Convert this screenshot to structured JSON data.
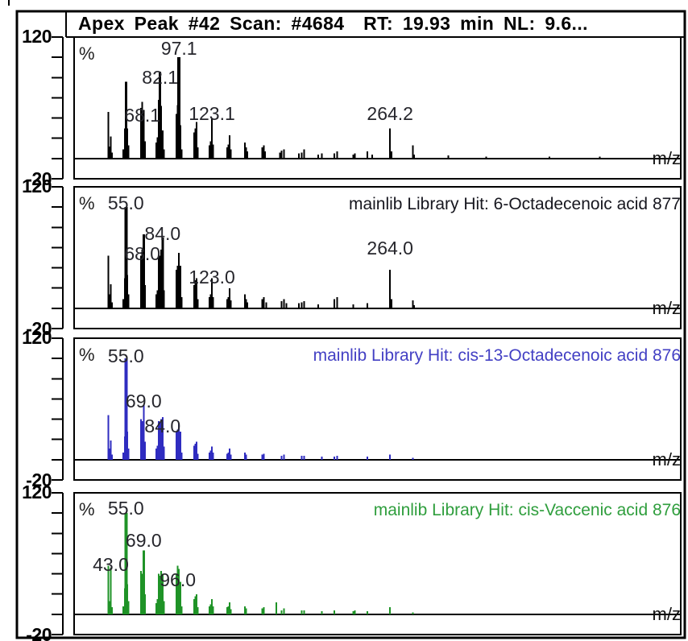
{
  "figure": {
    "description": "Mass spectral library comparison: apex scan spectrum vs three mainlib library hits",
    "axis": {
      "y_top": "120",
      "y_bottom": "-20",
      "ylabel": "%",
      "xlabel": "m/z"
    }
  },
  "palette": {
    "background": "#ffffff",
    "frame": "#000000",
    "peak_label_color": "#26262c"
  },
  "chart_data": [
    {
      "type": "bar",
      "title": "Apex Peak #42 Scan: #4684  RT: 19.93 min NL: 9.6...",
      "title_bold": true,
      "title_align": "left",
      "title_color": "#000000",
      "series_color": "#000000",
      "xlabel": "m/z",
      "ylabel": "%",
      "ylim": [
        -20,
        120
      ],
      "xlim": [
        14,
        494
      ],
      "labeled_peaks": [
        {
          "text": "68.1",
          "mz": 68,
          "dy": 29
        },
        {
          "text": "82.1",
          "mz": 82,
          "dy": 20
        },
        {
          "text": "97.1",
          "mz": 97,
          "dy": 2
        },
        {
          "text": "123.1",
          "mz": 123,
          "dy": 7
        },
        {
          "text": "264.2",
          "mz": 264,
          "dy": -5
        }
      ],
      "peaks": [
        [
          41,
          46
        ],
        [
          42,
          12
        ],
        [
          43,
          22
        ],
        [
          44,
          6
        ],
        [
          53,
          9
        ],
        [
          54,
          30
        ],
        [
          55,
          76
        ],
        [
          56,
          30
        ],
        [
          57,
          13
        ],
        [
          67,
          50
        ],
        [
          68,
          56
        ],
        [
          69,
          48
        ],
        [
          70,
          17
        ],
        [
          79,
          16
        ],
        [
          80,
          21
        ],
        [
          81,
          58
        ],
        [
          82,
          86
        ],
        [
          83,
          52
        ],
        [
          84,
          28
        ],
        [
          85,
          9
        ],
        [
          95,
          44
        ],
        [
          96,
          53
        ],
        [
          97,
          100
        ],
        [
          98,
          33
        ],
        [
          99,
          9
        ],
        [
          109,
          26
        ],
        [
          110,
          30
        ],
        [
          111,
          36
        ],
        [
          112,
          11
        ],
        [
          121,
          13
        ],
        [
          122,
          17
        ],
        [
          123,
          40
        ],
        [
          124,
          14
        ],
        [
          135,
          11
        ],
        [
          136,
          14
        ],
        [
          137,
          23
        ],
        [
          138,
          9
        ],
        [
          149,
          16
        ],
        [
          150,
          11
        ],
        [
          151,
          7
        ],
        [
          163,
          11
        ],
        [
          164,
          13
        ],
        [
          165,
          7
        ],
        [
          177,
          6
        ],
        [
          178,
          8
        ],
        [
          180,
          9
        ],
        [
          192,
          5
        ],
        [
          194,
          6
        ],
        [
          196,
          9
        ],
        [
          207,
          4
        ],
        [
          210,
          5
        ],
        [
          220,
          5
        ],
        [
          222,
          7
        ],
        [
          235,
          4
        ],
        [
          236,
          5
        ],
        [
          246,
          7
        ],
        [
          250,
          4
        ],
        [
          264,
          30
        ],
        [
          265,
          7
        ],
        [
          282,
          13
        ],
        [
          283,
          4
        ],
        [
          310,
          3
        ],
        [
          340,
          2
        ],
        [
          390,
          2
        ],
        [
          430,
          2
        ]
      ]
    },
    {
      "type": "bar",
      "title": "mainlib Library Hit: 6-Octadecenoic acid 877",
      "title_bold": false,
      "title_align": "right",
      "title_color": "#17171f",
      "series_color": "#000000",
      "xlabel": "m/z",
      "ylabel": "%",
      "ylim": [
        -20,
        120
      ],
      "xlim": [
        14,
        494
      ],
      "labeled_peaks": [
        {
          "text": "55.0",
          "mz": 55,
          "dy": 8
        },
        {
          "text": "68.0",
          "mz": 68,
          "dy": 18
        },
        {
          "text": "84.0",
          "mz": 84,
          "dy": 8
        },
        {
          "text": "123.0",
          "mz": 123,
          "dy": 12
        },
        {
          "text": "264.0",
          "mz": 264,
          "dy": -14
        }
      ],
      "peaks": [
        [
          41,
          52
        ],
        [
          42,
          14
        ],
        [
          43,
          24
        ],
        [
          44,
          6
        ],
        [
          53,
          9
        ],
        [
          54,
          30
        ],
        [
          55,
          100
        ],
        [
          56,
          33
        ],
        [
          57,
          14
        ],
        [
          67,
          52
        ],
        [
          68,
          58
        ],
        [
          69,
          73
        ],
        [
          70,
          23
        ],
        [
          79,
          14
        ],
        [
          80,
          18
        ],
        [
          81,
          52
        ],
        [
          82,
          52
        ],
        [
          83,
          58
        ],
        [
          84,
          70
        ],
        [
          85,
          18
        ],
        [
          95,
          38
        ],
        [
          96,
          42
        ],
        [
          97,
          55
        ],
        [
          98,
          42
        ],
        [
          99,
          11
        ],
        [
          109,
          23
        ],
        [
          110,
          28
        ],
        [
          111,
          30
        ],
        [
          112,
          9
        ],
        [
          121,
          11
        ],
        [
          122,
          14
        ],
        [
          123,
          30
        ],
        [
          124,
          11
        ],
        [
          135,
          9
        ],
        [
          136,
          11
        ],
        [
          137,
          20
        ],
        [
          138,
          8
        ],
        [
          149,
          14
        ],
        [
          150,
          9
        ],
        [
          151,
          6
        ],
        [
          163,
          9
        ],
        [
          164,
          11
        ],
        [
          166,
          6
        ],
        [
          178,
          7
        ],
        [
          180,
          9
        ],
        [
          182,
          5
        ],
        [
          192,
          5
        ],
        [
          194,
          6
        ],
        [
          196,
          7
        ],
        [
          207,
          4
        ],
        [
          220,
          9
        ],
        [
          222,
          11
        ],
        [
          235,
          4
        ],
        [
          246,
          5
        ],
        [
          264,
          38
        ],
        [
          265,
          9
        ],
        [
          282,
          8
        ],
        [
          283,
          3
        ]
      ]
    },
    {
      "type": "bar",
      "title": "mainlib Library Hit: cis-13-Octadecenoic acid 876",
      "title_bold": false,
      "title_align": "right",
      "title_color": "#4340c4",
      "series_color": "#2f2cc0",
      "xlabel": "m/z",
      "ylabel": "%",
      "ylim": [
        -20,
        120
      ],
      "xlim": [
        14,
        494
      ],
      "labeled_peaks": [
        {
          "text": "55.0",
          "mz": 55,
          "dy": 10
        },
        {
          "text": "69.0",
          "mz": 69,
          "dy": 8
        },
        {
          "text": "84.0",
          "mz": 84,
          "dy": 24
        }
      ],
      "peaks": [
        [
          41,
          44
        ],
        [
          42,
          11
        ],
        [
          43,
          19
        ],
        [
          44,
          5
        ],
        [
          53,
          7
        ],
        [
          54,
          23
        ],
        [
          55,
          100
        ],
        [
          56,
          28
        ],
        [
          57,
          11
        ],
        [
          67,
          40
        ],
        [
          68,
          38
        ],
        [
          69,
          54
        ],
        [
          70,
          18
        ],
        [
          79,
          11
        ],
        [
          80,
          14
        ],
        [
          81,
          38
        ],
        [
          82,
          36
        ],
        [
          83,
          40
        ],
        [
          84,
          42
        ],
        [
          85,
          13
        ],
        [
          95,
          28
        ],
        [
          96,
          30
        ],
        [
          97,
          36
        ],
        [
          98,
          28
        ],
        [
          99,
          7
        ],
        [
          109,
          14
        ],
        [
          110,
          16
        ],
        [
          111,
          18
        ],
        [
          112,
          6
        ],
        [
          121,
          7
        ],
        [
          122,
          9
        ],
        [
          123,
          13
        ],
        [
          124,
          7
        ],
        [
          135,
          6
        ],
        [
          136,
          7
        ],
        [
          137,
          11
        ],
        [
          138,
          5
        ],
        [
          149,
          7
        ],
        [
          150,
          5
        ],
        [
          163,
          5
        ],
        [
          164,
          6
        ],
        [
          178,
          4
        ],
        [
          180,
          5
        ],
        [
          194,
          4
        ],
        [
          196,
          4
        ],
        [
          210,
          3
        ],
        [
          220,
          3
        ],
        [
          222,
          4
        ],
        [
          246,
          3
        ],
        [
          264,
          5
        ],
        [
          282,
          2
        ]
      ]
    },
    {
      "type": "bar",
      "title": "mainlib Library Hit: cis-Vaccenic acid 876",
      "title_bold": false,
      "title_align": "right",
      "title_color": "#2f9e3d",
      "series_color": "#1f9327",
      "xlabel": "m/z",
      "ylabel": "%",
      "ylim": [
        -20,
        120
      ],
      "xlim": [
        14,
        494
      ],
      "labeled_peaks": [
        {
          "text": "43.0",
          "mz": 43,
          "dy": 9
        },
        {
          "text": "55.0",
          "mz": 55,
          "dy": 7
        },
        {
          "text": "69.0",
          "mz": 69,
          "dy": 0
        },
        {
          "text": "96.0",
          "mz": 96,
          "dy": 30
        }
      ],
      "peaks": [
        [
          41,
          48
        ],
        [
          42,
          13
        ],
        [
          43,
          46
        ],
        [
          44,
          7
        ],
        [
          53,
          8
        ],
        [
          54,
          26
        ],
        [
          55,
          100
        ],
        [
          56,
          30
        ],
        [
          57,
          13
        ],
        [
          67,
          43
        ],
        [
          68,
          40
        ],
        [
          69,
          63
        ],
        [
          70,
          20
        ],
        [
          79,
          11
        ],
        [
          80,
          15
        ],
        [
          81,
          40
        ],
        [
          82,
          38
        ],
        [
          83,
          43
        ],
        [
          84,
          40
        ],
        [
          85,
          13
        ],
        [
          95,
          40
        ],
        [
          96,
          48
        ],
        [
          97,
          45
        ],
        [
          98,
          32
        ],
        [
          99,
          8
        ],
        [
          109,
          15
        ],
        [
          110,
          18
        ],
        [
          111,
          20
        ],
        [
          112,
          7
        ],
        [
          121,
          8
        ],
        [
          122,
          10
        ],
        [
          123,
          15
        ],
        [
          124,
          8
        ],
        [
          135,
          7
        ],
        [
          136,
          8
        ],
        [
          137,
          12
        ],
        [
          138,
          5
        ],
        [
          149,
          8
        ],
        [
          150,
          6
        ],
        [
          163,
          6
        ],
        [
          164,
          7
        ],
        [
          174,
          12
        ],
        [
          178,
          4
        ],
        [
          180,
          6
        ],
        [
          194,
          4
        ],
        [
          196,
          4
        ],
        [
          210,
          3
        ],
        [
          220,
          4
        ],
        [
          235,
          3
        ],
        [
          236,
          4
        ],
        [
          246,
          3
        ],
        [
          264,
          7
        ],
        [
          282,
          2
        ]
      ]
    }
  ]
}
